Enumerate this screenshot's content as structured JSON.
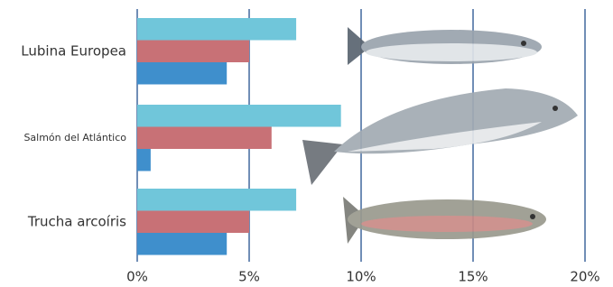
{
  "chart_data": {
    "type": "bar",
    "orientation": "horizontal",
    "categories": [
      "Lubina Europea",
      "Salmón del Atlántico",
      "Trucha arcoíris"
    ],
    "series": [
      {
        "color": "#70c6da",
        "values": [
          7.1,
          9.1,
          7.1
        ]
      },
      {
        "color": "#c87176",
        "values": [
          5.0,
          6.0,
          5.0
        ]
      },
      {
        "color": "#3f8fcc",
        "values": [
          4.0,
          0.6,
          4.0
        ]
      }
    ],
    "xlim": [
      0,
      20
    ],
    "xticks": [
      {
        "value": 0,
        "label": "0%"
      },
      {
        "value": 5,
        "label": "5%"
      },
      {
        "value": 10,
        "label": "10%"
      },
      {
        "value": 15,
        "label": "15%"
      },
      {
        "value": 20,
        "label": "20%"
      }
    ],
    "grid": true,
    "grid_color": "#24508f"
  }
}
